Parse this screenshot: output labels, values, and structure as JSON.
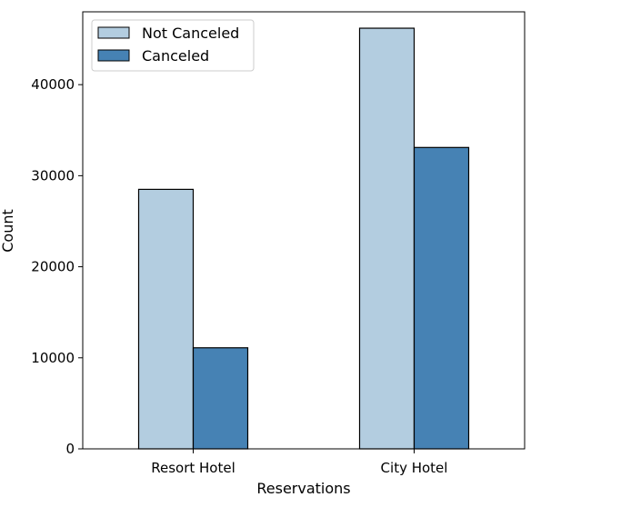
{
  "chart_data": {
    "type": "bar",
    "title": "",
    "xlabel": "Reservations",
    "ylabel": "Count",
    "categories": [
      "Resort Hotel",
      "City Hotel"
    ],
    "series": [
      {
        "name": "Not Canceled",
        "values": [
          28500,
          46200
        ],
        "color": "#b3cde0"
      },
      {
        "name": "Canceled",
        "values": [
          11100,
          33100
        ],
        "color": "#4682b4"
      }
    ],
    "ylim": [
      0,
      48000
    ],
    "yticks": [
      0,
      10000,
      20000,
      30000,
      40000
    ],
    "ytick_labels": [
      "0",
      "10000",
      "20000",
      "30000",
      "40000"
    ],
    "grid": false,
    "legend": {
      "placement": "top-left",
      "entries": [
        "Not Canceled",
        "Canceled"
      ]
    }
  }
}
